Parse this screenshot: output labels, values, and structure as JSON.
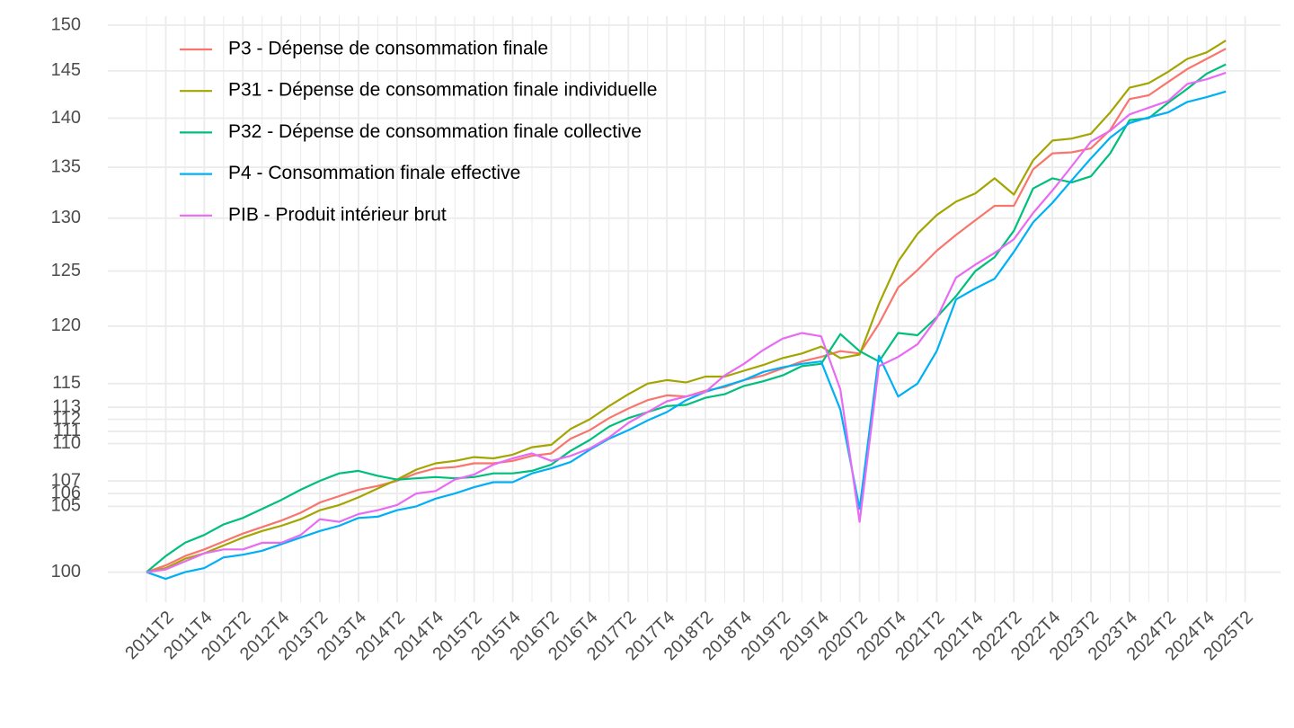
{
  "chart_data": {
    "type": "line",
    "log": true,
    "grid": true,
    "legend_position": "top-left",
    "categories": [
      null,
      "2011T2",
      null,
      "2011T4",
      null,
      "2012T2",
      null,
      "2012T4",
      null,
      "2013T2",
      null,
      "2013T4",
      null,
      "2014T2",
      null,
      "2014T4",
      null,
      "2015T2",
      null,
      "2015T4",
      null,
      "2016T2",
      null,
      "2016T4",
      null,
      "2017T2",
      null,
      "2017T4",
      null,
      "2018T2",
      null,
      "2018T4",
      null,
      "2019T2",
      null,
      "2019T4",
      null,
      "2020T2",
      null,
      "2020T4",
      null,
      "2021T2",
      null,
      "2021T4",
      null,
      "2022T2",
      null,
      "2022T4",
      null,
      "2023T2",
      null,
      "2023T4",
      null,
      "2024T2",
      null,
      "2024T4",
      null,
      "2025T2"
    ],
    "ylim": [
      97.8,
      151
    ],
    "yticks": [
      100,
      105,
      106,
      107,
      110,
      111,
      112,
      113,
      115,
      120,
      125,
      130,
      135,
      140,
      145,
      150
    ],
    "series": [
      {
        "name": "P3 - Dépense de consommation finale",
        "color": "#F8766D",
        "values": [
          100,
          100.5,
          101.2,
          101.7,
          102.3,
          102.9,
          103.4,
          103.9,
          104.5,
          105.3,
          105.8,
          106.3,
          106.6,
          107.0,
          107.6,
          108.0,
          108.1,
          108.4,
          108.4,
          108.6,
          109.0,
          109.2,
          110.4,
          111.1,
          112.1,
          112.9,
          113.6,
          114.0,
          113.9,
          114.4,
          114.7,
          115.3,
          115.7,
          116.3,
          116.9,
          117.3,
          117.8,
          117.6,
          120.2,
          123.5,
          125.1,
          126.9,
          128.4,
          129.8,
          131.2,
          131.2,
          134.8,
          136.4,
          136.5,
          136.9,
          138.8,
          142.0,
          142.4,
          143.8,
          145.2,
          146.3,
          147.4,
          null
        ]
      },
      {
        "name": "P31 - Dépense de consommation finale individuelle",
        "color": "#A3A500",
        "values": [
          100,
          100.3,
          101.0,
          101.4,
          102.0,
          102.6,
          103.1,
          103.5,
          104.0,
          104.7,
          105.1,
          105.7,
          106.4,
          107.1,
          107.9,
          108.4,
          108.6,
          108.9,
          108.8,
          109.1,
          109.7,
          109.9,
          111.2,
          112.0,
          113.1,
          114.1,
          115.0,
          115.3,
          115.1,
          115.6,
          115.6,
          116.1,
          116.6,
          117.2,
          117.6,
          118.2,
          117.2,
          117.5,
          122.0,
          125.9,
          128.5,
          130.3,
          131.6,
          132.4,
          133.9,
          132.3,
          135.7,
          137.7,
          137.9,
          138.4,
          140.6,
          143.2,
          143.7,
          144.9,
          146.3,
          147.0,
          148.3,
          null
        ]
      },
      {
        "name": "P32 - Dépense de consommation finale collective",
        "color": "#00BF7D",
        "values": [
          100,
          101.2,
          102.2,
          102.8,
          103.6,
          104.1,
          104.8,
          105.5,
          106.3,
          107.0,
          107.6,
          107.8,
          107.4,
          107.1,
          107.2,
          107.3,
          107.2,
          107.3,
          107.6,
          107.6,
          107.8,
          108.3,
          109.4,
          110.3,
          111.4,
          112.1,
          112.6,
          113.1,
          113.2,
          113.8,
          114.1,
          114.8,
          115.2,
          115.7,
          116.5,
          116.7,
          119.3,
          117.8,
          116.9,
          119.4,
          119.2,
          120.8,
          122.7,
          125.0,
          126.3,
          128.8,
          132.9,
          133.9,
          133.5,
          134.1,
          136.4,
          139.8,
          140.0,
          141.6,
          143.1,
          144.7,
          145.7,
          null
        ]
      },
      {
        "name": "P4 - Consommation finale effective",
        "color": "#00B0F6",
        "values": [
          100,
          99.5,
          100.0,
          100.3,
          101.1,
          101.3,
          101.6,
          102.1,
          102.6,
          103.1,
          103.5,
          104.1,
          104.2,
          104.7,
          105.0,
          105.6,
          106.0,
          106.5,
          106.9,
          106.9,
          107.6,
          108.0,
          108.5,
          109.5,
          110.4,
          111.1,
          111.9,
          112.6,
          113.6,
          114.3,
          114.8,
          115.3,
          116.0,
          116.4,
          116.7,
          116.9,
          112.8,
          104.8,
          117.4,
          113.9,
          115.0,
          117.8,
          122.4,
          123.4,
          124.3,
          126.8,
          129.6,
          131.5,
          133.7,
          135.9,
          138.0,
          139.5,
          140.1,
          140.6,
          141.7,
          142.2,
          142.8,
          null
        ]
      },
      {
        "name": "PIB - Produit intérieur brut",
        "color": "#E76BF3",
        "values": [
          100,
          100.2,
          100.8,
          101.4,
          101.7,
          101.7,
          102.2,
          102.2,
          102.8,
          104.0,
          103.8,
          104.4,
          104.7,
          105.1,
          106.0,
          106.2,
          107.1,
          107.5,
          108.3,
          108.8,
          109.2,
          108.6,
          109.0,
          109.6,
          110.5,
          111.7,
          112.6,
          113.5,
          113.9,
          114.3,
          115.7,
          116.7,
          117.9,
          118.9,
          119.4,
          119.1,
          114.5,
          103.8,
          116.5,
          117.3,
          118.4,
          120.7,
          124.4,
          125.6,
          126.7,
          128.0,
          130.5,
          132.7,
          135.1,
          137.6,
          138.7,
          140.4,
          141.1,
          141.8,
          143.6,
          144.1,
          144.8,
          null
        ]
      }
    ]
  }
}
